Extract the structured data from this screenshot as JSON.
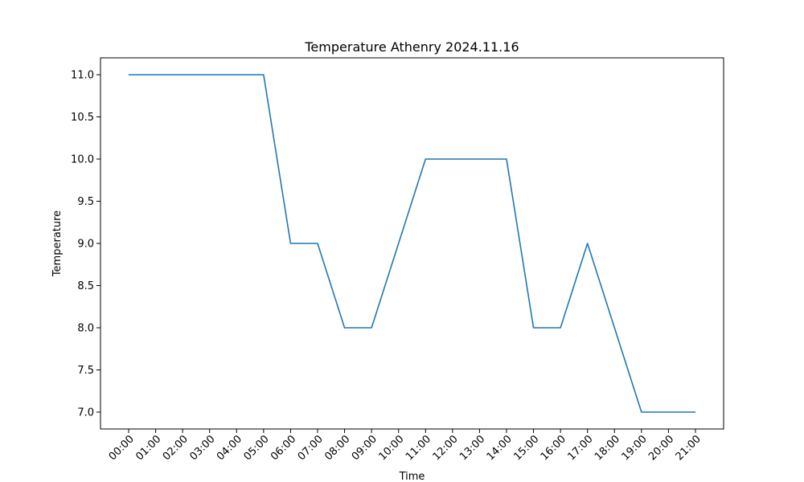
{
  "chart_data": {
    "type": "line",
    "title": "Temperature Athenry 2024.11.16",
    "xlabel": "Time",
    "ylabel": "Temperature",
    "categories": [
      "00:00",
      "01:00",
      "02:00",
      "03:00",
      "04:00",
      "05:00",
      "06:00",
      "07:00",
      "08:00",
      "09:00",
      "10:00",
      "11:00",
      "12:00",
      "13:00",
      "14:00",
      "15:00",
      "16:00",
      "17:00",
      "18:00",
      "19:00",
      "20:00",
      "21:00"
    ],
    "series": [
      {
        "values": [
          11.0,
          11.0,
          11.0,
          11.0,
          11.0,
          11.0,
          9.0,
          9.0,
          8.0,
          8.0,
          9.0,
          10.0,
          10.0,
          10.0,
          10.0,
          8.0,
          8.0,
          9.0,
          8.0,
          7.0,
          7.0,
          7.0
        ],
        "color": "#1f77b4"
      }
    ],
    "yticks": [
      "7.0",
      "7.5",
      "8.0",
      "8.5",
      "9.0",
      "9.5",
      "10.0",
      "10.5",
      "11.0"
    ],
    "ylim": [
      6.8,
      11.2
    ],
    "grid": false,
    "legend": "none"
  }
}
